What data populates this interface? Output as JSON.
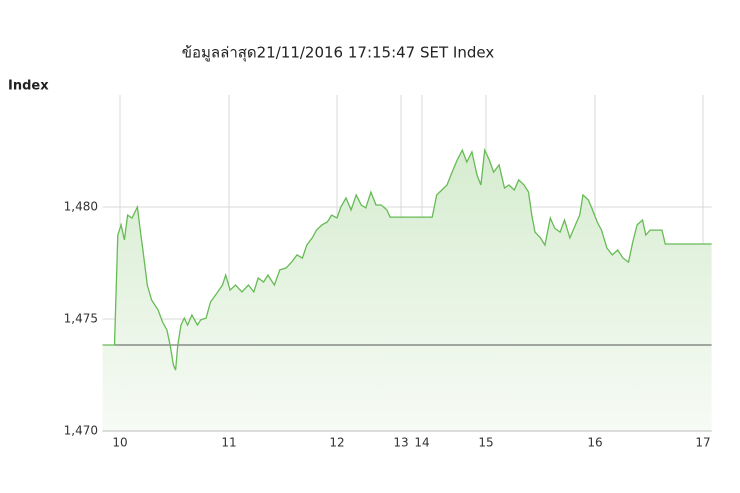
{
  "chart_data": {
    "type": "area",
    "title": "ข้อมูลล่าสุด21/11/2016 17:15:47  SET Index",
    "y_label": "Index",
    "x": [
      9.84,
      9.95,
      9.98,
      10.01,
      10.04,
      10.07,
      10.11,
      10.16,
      10.18,
      10.21,
      10.25,
      10.29,
      10.35,
      10.39,
      10.43,
      10.46,
      10.49,
      10.51,
      10.53,
      10.56,
      10.59,
      10.62,
      10.66,
      10.71,
      10.74,
      10.79,
      10.83,
      10.89,
      10.94,
      10.97,
      11.01,
      11.06,
      11.12,
      11.18,
      11.23,
      11.27,
      11.32,
      11.36,
      11.42,
      11.47,
      11.53,
      11.58,
      11.63,
      11.68,
      11.72,
      11.77,
      11.81,
      11.86,
      11.91,
      11.95,
      12.0,
      12.06,
      12.14,
      12.22,
      12.3,
      12.38,
      12.45,
      12.53,
      12.61,
      12.69,
      12.78,
      12.83,
      14.16,
      14.23,
      14.31,
      14.39,
      14.47,
      14.55,
      14.63,
      14.7,
      14.78,
      14.86,
      14.92,
      14.98,
      15.03,
      15.07,
      15.12,
      15.17,
      15.21,
      15.26,
      15.3,
      15.35,
      15.39,
      15.42,
      15.45,
      15.5,
      15.54,
      15.59,
      15.63,
      15.68,
      15.72,
      15.77,
      15.82,
      15.86,
      15.89,
      15.94,
      15.97,
      16.02,
      16.06,
      16.11,
      16.16,
      16.21,
      16.26,
      16.31,
      16.35,
      16.39,
      16.44,
      16.47,
      16.51,
      16.62,
      16.65,
      17.08
    ],
    "series": [
      {
        "color": "#66bb55",
        "values": [
          1473.84,
          1473.84,
          1478.75,
          1479.2,
          1478.53,
          1479.64,
          1479.51,
          1480,
          1479.2,
          1478.08,
          1476.52,
          1475.85,
          1475.4,
          1474.87,
          1474.51,
          1473.84,
          1472.95,
          1472.72,
          1473.84,
          1474.73,
          1475.04,
          1474.73,
          1475.18,
          1474.73,
          1474.96,
          1475.04,
          1475.76,
          1476.16,
          1476.52,
          1476.96,
          1476.29,
          1476.52,
          1476.21,
          1476.52,
          1476.21,
          1476.83,
          1476.65,
          1476.96,
          1476.52,
          1477.19,
          1477.28,
          1477.54,
          1477.86,
          1477.72,
          1478.3,
          1478.62,
          1478.97,
          1479.2,
          1479.33,
          1479.64,
          1479.51,
          1480,
          1480.4,
          1479.87,
          1480.54,
          1480.09,
          1479.96,
          1480.67,
          1480.09,
          1480.09,
          1479.87,
          1479.55,
          1479.55,
          1480.54,
          1480.76,
          1480.98,
          1481.56,
          1482.1,
          1482.54,
          1482.01,
          1482.46,
          1481.43,
          1480.98,
          1482.54,
          1482.1,
          1481.56,
          1481.88,
          1480.85,
          1480.98,
          1480.76,
          1481.21,
          1480.98,
          1480.67,
          1479.64,
          1478.88,
          1478.62,
          1478.3,
          1479.51,
          1479.06,
          1478.88,
          1479.42,
          1478.62,
          1479.2,
          1479.64,
          1480.54,
          1480.31,
          1479.96,
          1479.33,
          1478.97,
          1478.17,
          1477.86,
          1478.08,
          1477.72,
          1477.54,
          1478.44,
          1479.2,
          1479.42,
          1478.75,
          1478.97,
          1478.97,
          1478.35,
          1478.35
        ]
      }
    ],
    "reference_line": 1473.84,
    "reference_color": "#555555",
    "xlim": [
      9.84,
      17.08
    ],
    "xticks": [
      10,
      11,
      12,
      13,
      14,
      15,
      16,
      17
    ],
    "ylim": [
      1470,
      1485
    ],
    "yticks": [
      {
        "value": 1470,
        "label": "1,470"
      },
      {
        "value": 1475,
        "label": "1,475"
      },
      {
        "value": 1480,
        "label": "1,480"
      }
    ],
    "grid": true
  }
}
